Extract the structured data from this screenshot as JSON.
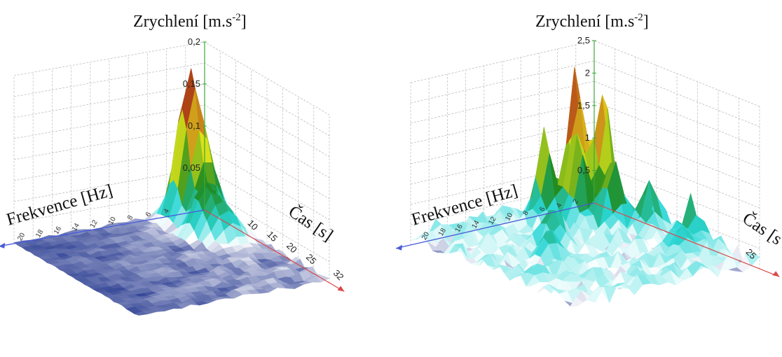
{
  "chart_data": [
    {
      "type": "surface3d",
      "title": "",
      "zlabel": "Zrychlení [m.s-2]",
      "zlabel_main": "Zrychlení  [m.s",
      "zlabel_sup": "-2",
      "zlabel_close": "]",
      "xlabel": "Frekvence [Hz]",
      "ylabel": "Čas [s]",
      "zlim": [
        0,
        0.2
      ],
      "z_ticks": [
        "0,2",
        "0,15",
        "0,1",
        "0,05"
      ],
      "z_tick_values": [
        0.2,
        0.15,
        0.1,
        0.05
      ],
      "freq_ticks": [
        "20",
        "18",
        "16",
        "14",
        "12",
        "10",
        "8",
        "6",
        "4"
      ],
      "time_ticks": [
        "10",
        "15",
        "20",
        "25",
        "32"
      ],
      "peaks": [
        {
          "freq": 3,
          "time": 3,
          "value": 0.17
        },
        {
          "freq": 2,
          "time": 6,
          "value": 0.06
        },
        {
          "freq": 4,
          "time": 9,
          "value": 0.05
        },
        {
          "freq": 3,
          "time": 12,
          "value": 0.04
        }
      ],
      "grid": true,
      "colormap": [
        "#0a1f80",
        "#ffffff",
        "#2bd6d6",
        "#1f8a1f",
        "#e6e61a",
        "#b5471a",
        "#6b1a0a"
      ]
    },
    {
      "type": "surface3d",
      "title": "",
      "zlabel": "Zrychlení [m.s-2]",
      "zlabel_main": "Zrychlení  [m.s",
      "zlabel_sup": "-2",
      "zlabel_close": "]",
      "xlabel": "Frekvence [Hz]",
      "ylabel": "Čas [s]",
      "ylabel_visible": "Čas [s",
      "zlim": [
        0,
        2.5
      ],
      "z_ticks": [
        "2,5",
        "2",
        "1,5",
        "1",
        "0,5"
      ],
      "z_tick_values": [
        2.5,
        2,
        1.5,
        1,
        0.5
      ],
      "freq_ticks": [
        "20",
        "18",
        "16",
        "14",
        "12",
        "10",
        "8",
        "6",
        "4",
        "2"
      ],
      "time_ticks": [
        "25"
      ],
      "peaks": [
        {
          "freq": 5,
          "time": 4,
          "value": 2.2
        },
        {
          "freq": 3,
          "time": 6,
          "value": 1.9
        },
        {
          "freq": 8,
          "time": 3,
          "value": 1.3
        },
        {
          "freq": 6,
          "time": 6,
          "value": 1.2
        },
        {
          "freq": 4,
          "time": 9,
          "value": 1.1
        },
        {
          "freq": 2,
          "time": 12,
          "value": 0.7
        },
        {
          "freq": 12,
          "time": 10,
          "value": 0.5
        },
        {
          "freq": 15,
          "time": 14,
          "value": 0.45
        },
        {
          "freq": 1,
          "time": 18,
          "value": 0.55
        },
        {
          "freq": 4,
          "time": 20,
          "value": 0.4
        }
      ],
      "grid": true,
      "colormap": [
        "#0a1f80",
        "#ffffff",
        "#2bd6d6",
        "#1f8a1f",
        "#e6e61a",
        "#b5471a",
        "#6b1a0a"
      ]
    }
  ]
}
